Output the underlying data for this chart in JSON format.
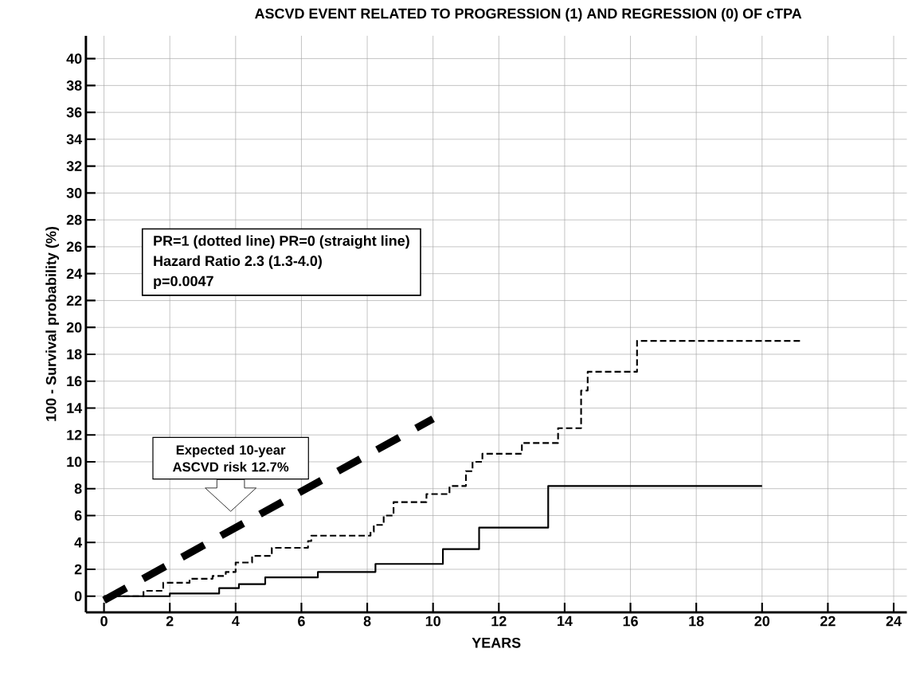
{
  "chart_data": {
    "type": "step",
    "title": "ASCVD EVENT RELATED TO PROGRESSION (1) AND REGRESSION (0) OF cTPA",
    "xlabel": "YEARS",
    "ylabel": "100 - Survival probability (%)",
    "xlim": [
      -0.55,
      24.4
    ],
    "ylim": [
      -1.2,
      41.7
    ],
    "xticks": [
      0,
      2,
      4,
      6,
      8,
      10,
      12,
      14,
      16,
      18,
      20,
      22,
      24
    ],
    "yticks": [
      0,
      2,
      4,
      6,
      8,
      10,
      12,
      14,
      16,
      18,
      20,
      22,
      24,
      26,
      28,
      30,
      32,
      34,
      36,
      38,
      40
    ],
    "grid": true,
    "series": [
      {
        "color": "#000000",
        "line_style": "dashed",
        "x": [
          0,
          1.2,
          1.8,
          2.6,
          3.3,
          3.7,
          4.0,
          4.5,
          5.1,
          6.2,
          6.3,
          8.1,
          8.2,
          8.5,
          8.8,
          9.8,
          10.5,
          11.0,
          11.2,
          11.5,
          12.7,
          13.8,
          14.5,
          14.7,
          16.2,
          21.2
        ],
        "values": [
          0,
          0.4,
          1.0,
          1.3,
          1.5,
          1.8,
          2.5,
          3.0,
          3.6,
          4.1,
          4.5,
          4.8,
          5.3,
          6.0,
          7.0,
          7.6,
          8.2,
          9.3,
          10.0,
          10.6,
          11.4,
          12.5,
          15.3,
          16.7,
          19.0,
          19.0
        ]
      },
      {
        "color": "#000000",
        "line_style": "solid",
        "x": [
          0,
          2.0,
          3.5,
          4.1,
          4.9,
          6.5,
          8.25,
          10.3,
          11.4,
          13.5,
          20.0
        ],
        "values": [
          0,
          0.2,
          0.6,
          0.9,
          1.4,
          1.8,
          2.4,
          3.5,
          5.1,
          8.2,
          8.2
        ]
      },
      {
        "type": "line",
        "color": "#000000",
        "line_style": "dashed",
        "x": [
          0,
          10
        ],
        "values": [
          -0.3,
          13.2
        ]
      }
    ],
    "annotations": [
      "PR=1 (dotted line) PR=0 (straight line)",
      "Hazard Ratio 2.3 (1.3-4.0)",
      "p=0.0047",
      "Expected 10-year ASCVD risk 12.7%"
    ]
  }
}
